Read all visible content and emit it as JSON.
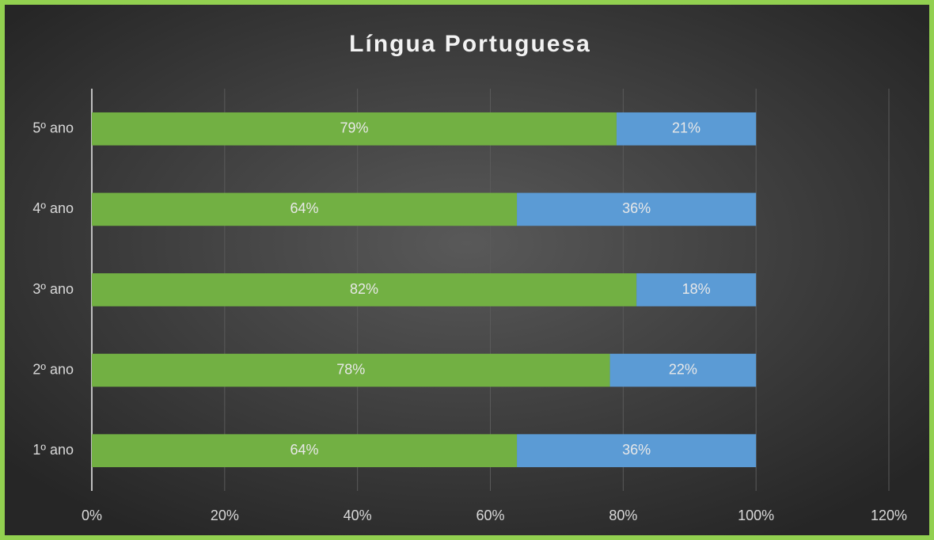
{
  "chart_data": {
    "type": "stacked-barh",
    "title": "Língua Portuguesa",
    "categories": [
      "5º ano",
      "4º ano",
      "3º ano",
      "2º ano",
      "1º ano"
    ],
    "series": [
      {
        "color": "#72b043",
        "values": [
          79,
          64,
          82,
          78,
          64
        ],
        "value_labels": [
          "79%",
          "64%",
          "82%",
          "78%",
          "64%"
        ]
      },
      {
        "color": "#5b9bd5",
        "values": [
          21,
          36,
          18,
          22,
          36
        ],
        "value_labels": [
          "21%",
          "36%",
          "18%",
          "22%",
          "36%"
        ]
      }
    ],
    "xlim": [
      0,
      120
    ],
    "xticks": [
      {
        "value": 0,
        "label": "0%"
      },
      {
        "value": 20,
        "label": "20%"
      },
      {
        "value": 40,
        "label": "40%"
      },
      {
        "value": 60,
        "label": "60%"
      },
      {
        "value": 80,
        "label": "80%"
      },
      {
        "value": 100,
        "label": "100%"
      },
      {
        "value": 120,
        "label": "120%"
      }
    ],
    "grid": true
  }
}
